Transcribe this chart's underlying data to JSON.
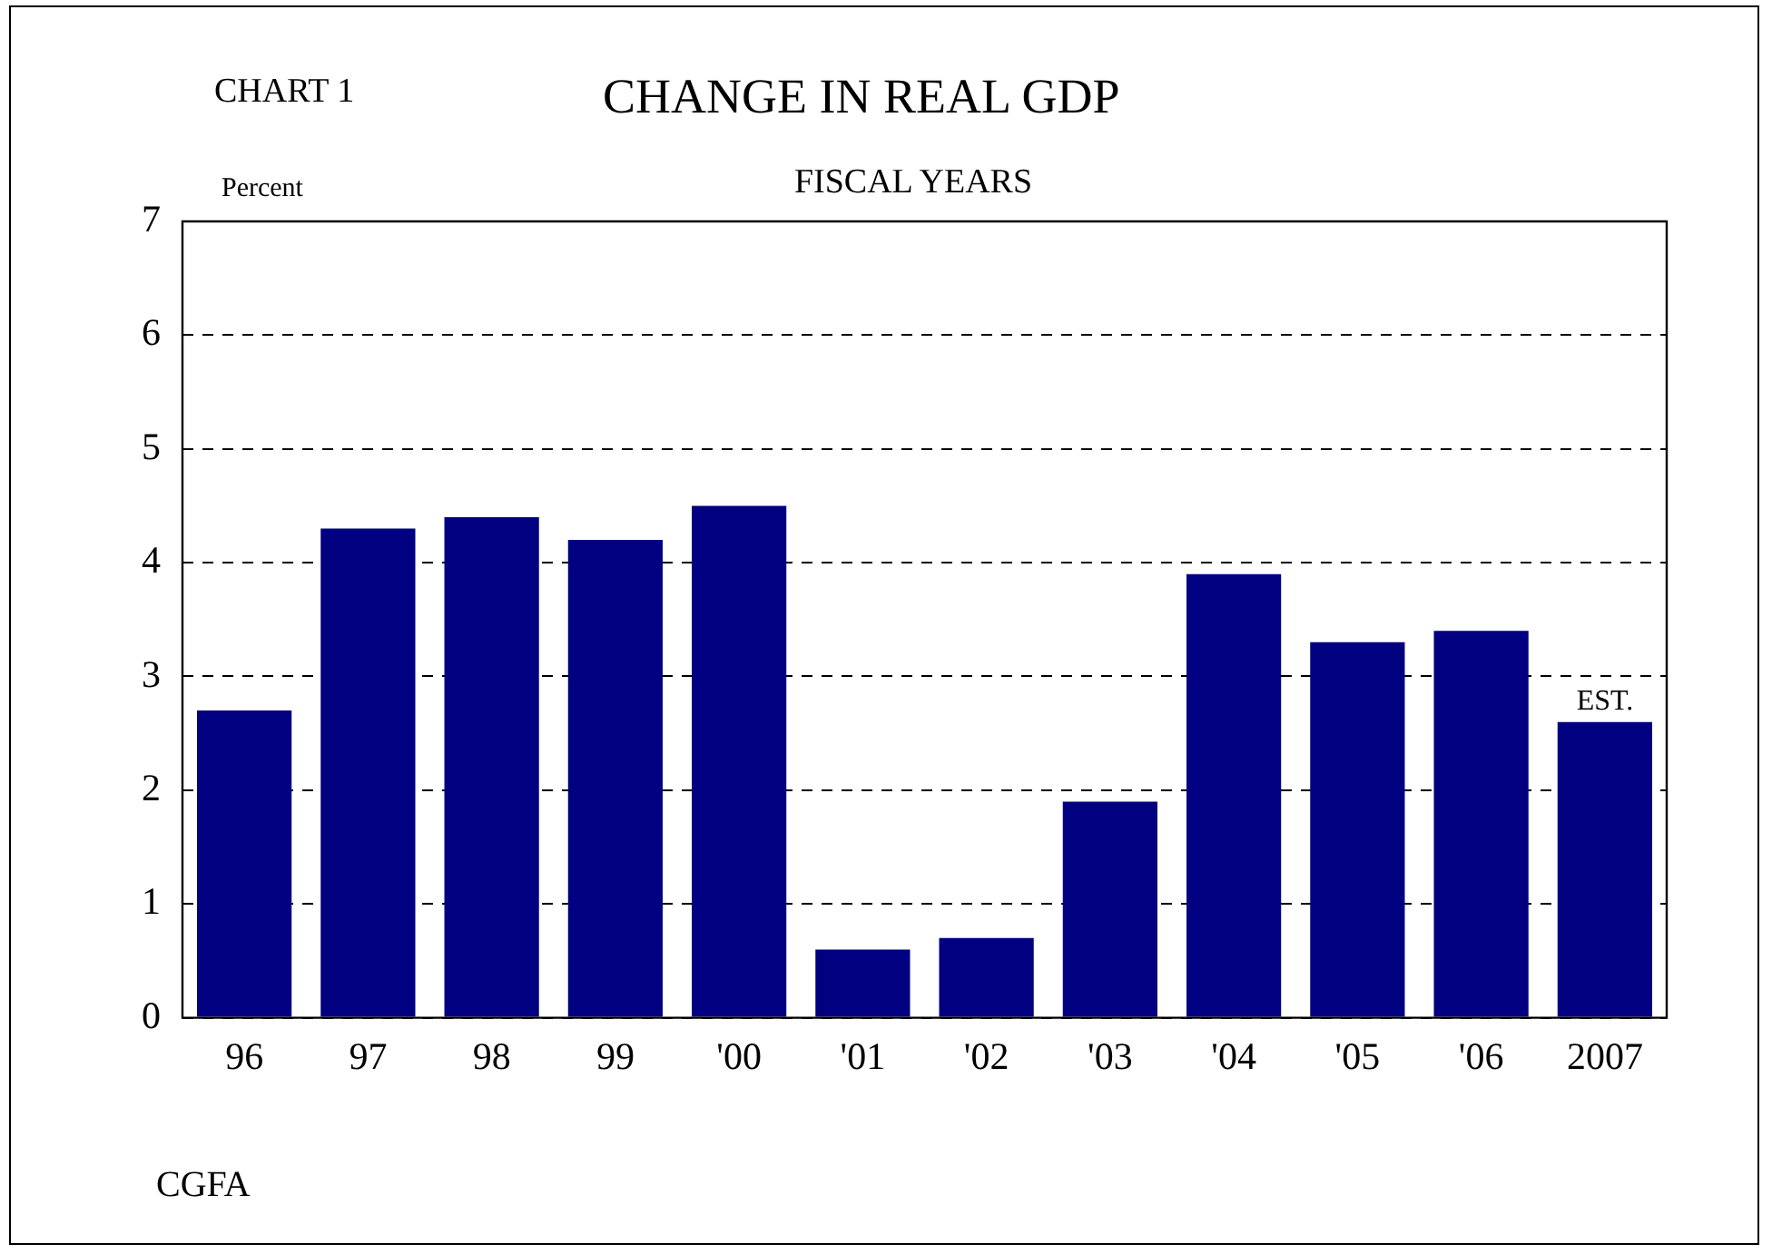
{
  "chart_data": {
    "type": "bar",
    "title": "CHANGE IN REAL GDP",
    "subtitle": "FISCAL YEARS",
    "ylabel": "Percent",
    "categories": [
      "96",
      "97",
      "98",
      "99",
      "'00",
      "'01",
      "'02",
      "'03",
      "'04",
      "'05",
      "'06",
      "2007"
    ],
    "values": [
      2.7,
      4.3,
      4.4,
      4.2,
      4.5,
      0.6,
      0.7,
      1.9,
      3.9,
      3.3,
      3.4,
      2.6
    ],
    "color": "#000080",
    "ylim": [
      0,
      7
    ],
    "yticks": [
      0,
      1,
      2,
      3,
      4,
      5,
      6,
      7
    ],
    "grid": "y",
    "legend": false,
    "annotations": [
      "CHART 1",
      {
        "text": "EST.",
        "x": "2007",
        "y": 2.6
      },
      "CGFA"
    ]
  }
}
